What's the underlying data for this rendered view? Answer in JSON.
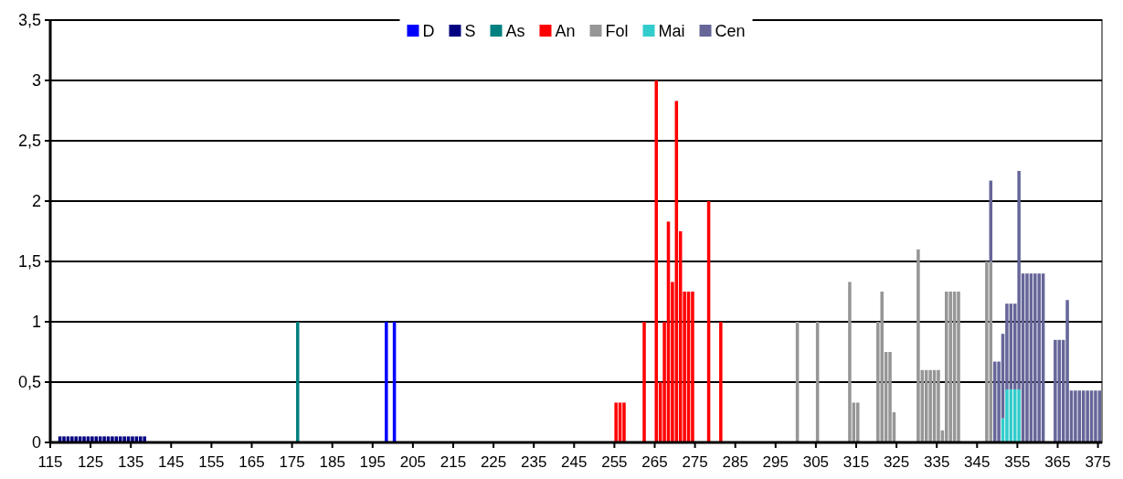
{
  "chart_data": {
    "type": "bar",
    "stacked": true,
    "grid": "y",
    "legend": "top",
    "xlim": [
      115,
      376
    ],
    "xticks": [
      115,
      125,
      135,
      145,
      155,
      165,
      175,
      185,
      195,
      205,
      215,
      225,
      235,
      245,
      255,
      265,
      275,
      285,
      295,
      305,
      315,
      325,
      335,
      345,
      355,
      365,
      375
    ],
    "ylim": [
      0,
      3.5
    ],
    "yticks": [
      0,
      {
        "value": 0.5,
        "label": "0,5"
      },
      1,
      {
        "value": 1.5,
        "label": "1,5"
      },
      2,
      {
        "value": 2.5,
        "label": "2,5"
      },
      3,
      {
        "value": 3.5,
        "label": "3,5"
      }
    ],
    "x": [
      117,
      118,
      119,
      120,
      121,
      122,
      123,
      124,
      125,
      126,
      127,
      128,
      129,
      130,
      131,
      132,
      133,
      134,
      135,
      136,
      137,
      138,
      176,
      198,
      200,
      255,
      256,
      257,
      262,
      265,
      266,
      267,
      268,
      269,
      270,
      271,
      272,
      273,
      274,
      278,
      281,
      300,
      305,
      313,
      314,
      315,
      320,
      321,
      322,
      323,
      324,
      330,
      331,
      332,
      333,
      334,
      335,
      336,
      337,
      338,
      339,
      340,
      347,
      348,
      349,
      350,
      351,
      352,
      353,
      354,
      355,
      356,
      357,
      358,
      359,
      360,
      361,
      364,
      365,
      366,
      367,
      368,
      369,
      370,
      371,
      372,
      373,
      374,
      375
    ],
    "series": [
      {
        "name": "D",
        "color": "#0000ff",
        "values": [
          null,
          null,
          null,
          null,
          null,
          null,
          null,
          null,
          null,
          null,
          null,
          null,
          null,
          null,
          null,
          null,
          null,
          null,
          null,
          null,
          null,
          null,
          null,
          1,
          1,
          null,
          null,
          null,
          null,
          null,
          null,
          null,
          null,
          null,
          null,
          null,
          null,
          null,
          null,
          null,
          null,
          null,
          null,
          null,
          null,
          null,
          null,
          null,
          null,
          null,
          null,
          null,
          null,
          null,
          null,
          null,
          null,
          null,
          null,
          null,
          null,
          null,
          null,
          null,
          null,
          null,
          null,
          null,
          null,
          null,
          null,
          null,
          null,
          null,
          null,
          null,
          null,
          null,
          null,
          null,
          null,
          null,
          null,
          null,
          null,
          null,
          null,
          null,
          null
        ]
      },
      {
        "name": "S",
        "color": "#000080",
        "values": [
          0.05,
          0.05,
          0.05,
          0.05,
          0.05,
          0.05,
          0.05,
          0.05,
          0.05,
          0.05,
          0.05,
          0.05,
          0.05,
          0.05,
          0.05,
          0.05,
          0.05,
          0.05,
          0.05,
          0.05,
          0.05,
          0.05,
          null,
          null,
          null,
          null,
          null,
          null,
          null,
          null,
          null,
          null,
          null,
          null,
          null,
          null,
          null,
          null,
          null,
          null,
          null,
          null,
          null,
          null,
          null,
          null,
          null,
          null,
          null,
          null,
          null,
          null,
          null,
          null,
          null,
          null,
          null,
          null,
          null,
          null,
          null,
          null,
          null,
          null,
          null,
          null,
          null,
          null,
          null,
          null,
          null,
          null,
          null,
          null,
          null,
          null,
          null,
          null,
          null,
          null,
          null,
          null,
          null,
          null,
          null,
          null,
          null,
          null,
          null
        ]
      },
      {
        "name": "As",
        "color": "#008080",
        "values": [
          null,
          null,
          null,
          null,
          null,
          null,
          null,
          null,
          null,
          null,
          null,
          null,
          null,
          null,
          null,
          null,
          null,
          null,
          null,
          null,
          null,
          null,
          1,
          null,
          null,
          null,
          null,
          null,
          null,
          null,
          null,
          null,
          null,
          null,
          null,
          null,
          null,
          null,
          null,
          null,
          null,
          null,
          null,
          null,
          null,
          null,
          null,
          null,
          null,
          null,
          null,
          null,
          null,
          null,
          null,
          null,
          null,
          null,
          null,
          null,
          null,
          null,
          null,
          null,
          null,
          null,
          null,
          null,
          null,
          null,
          null,
          null,
          null,
          null,
          null,
          null,
          null,
          null,
          null,
          null,
          null,
          null,
          null,
          null,
          null,
          null,
          null,
          null,
          null
        ]
      },
      {
        "name": "An",
        "color": "#ff0000",
        "values": [
          null,
          null,
          null,
          null,
          null,
          null,
          null,
          null,
          null,
          null,
          null,
          null,
          null,
          null,
          null,
          null,
          null,
          null,
          null,
          null,
          null,
          null,
          null,
          null,
          null,
          0.33,
          0.33,
          0.33,
          1,
          3,
          0.5,
          1,
          1.83,
          1.33,
          2.83,
          1.75,
          1.25,
          1.25,
          1.25,
          2,
          1,
          null,
          null,
          null,
          null,
          null,
          null,
          null,
          null,
          null,
          null,
          null,
          null,
          null,
          null,
          null,
          null,
          null,
          null,
          null,
          null,
          null,
          null,
          null,
          null,
          null,
          null,
          null,
          null,
          null,
          null,
          null,
          null,
          null,
          null,
          null,
          null,
          null,
          null,
          null,
          null,
          null,
          null,
          null,
          null,
          null,
          null,
          null,
          null
        ]
      },
      {
        "name": "Fol",
        "color": "#969696",
        "values": [
          null,
          null,
          null,
          null,
          null,
          null,
          null,
          null,
          null,
          null,
          null,
          null,
          null,
          null,
          null,
          null,
          null,
          null,
          null,
          null,
          null,
          null,
          null,
          null,
          null,
          null,
          null,
          null,
          null,
          null,
          null,
          null,
          null,
          null,
          null,
          null,
          null,
          null,
          null,
          null,
          null,
          1,
          1,
          1.33,
          0.33,
          0.33,
          1,
          1.25,
          0.75,
          0.75,
          0.25,
          1.6,
          0.6,
          0.6,
          0.6,
          0.6,
          0.6,
          0.1,
          1.25,
          1.25,
          1.25,
          1.25,
          1.5,
          1.5,
          null,
          null,
          null,
          null,
          null,
          null,
          null,
          null,
          null,
          null,
          null,
          null,
          null,
          null,
          null,
          null,
          null,
          null,
          null,
          null,
          null,
          null,
          null,
          null,
          null
        ]
      },
      {
        "name": "Mai",
        "color": "#33cccc",
        "values": [
          null,
          null,
          null,
          null,
          null,
          null,
          null,
          null,
          null,
          null,
          null,
          null,
          null,
          null,
          null,
          null,
          null,
          null,
          null,
          null,
          null,
          null,
          null,
          null,
          null,
          null,
          null,
          null,
          null,
          null,
          null,
          null,
          null,
          null,
          null,
          null,
          null,
          null,
          null,
          null,
          null,
          null,
          null,
          null,
          null,
          null,
          null,
          null,
          null,
          null,
          null,
          null,
          null,
          null,
          null,
          null,
          null,
          null,
          null,
          null,
          null,
          null,
          null,
          null,
          null,
          null,
          0.2,
          0.44,
          0.44,
          0.44,
          0.44,
          null,
          null,
          null,
          null,
          null,
          null,
          null,
          null,
          null,
          null,
          null,
          null,
          null,
          null,
          null,
          null,
          null,
          null
        ]
      },
      {
        "name": "Cen",
        "color": "#666699",
        "values": [
          null,
          null,
          null,
          null,
          null,
          null,
          null,
          null,
          null,
          null,
          null,
          null,
          null,
          null,
          null,
          null,
          null,
          null,
          null,
          null,
          null,
          null,
          null,
          null,
          null,
          null,
          null,
          null,
          null,
          null,
          null,
          null,
          null,
          null,
          null,
          null,
          null,
          null,
          null,
          null,
          null,
          null,
          null,
          null,
          null,
          null,
          null,
          null,
          null,
          null,
          null,
          null,
          null,
          null,
          null,
          null,
          null,
          null,
          null,
          null,
          null,
          null,
          null,
          0.67,
          0.67,
          0.67,
          0.7,
          0.71,
          0.71,
          0.71,
          1.81,
          1.4,
          1.4,
          1.4,
          1.4,
          1.4,
          1.4,
          0.85,
          0.85,
          0.85,
          1.18,
          0.43,
          0.43,
          0.43,
          0.43,
          0.43,
          0.43,
          0.43,
          0.43
        ]
      }
    ]
  }
}
